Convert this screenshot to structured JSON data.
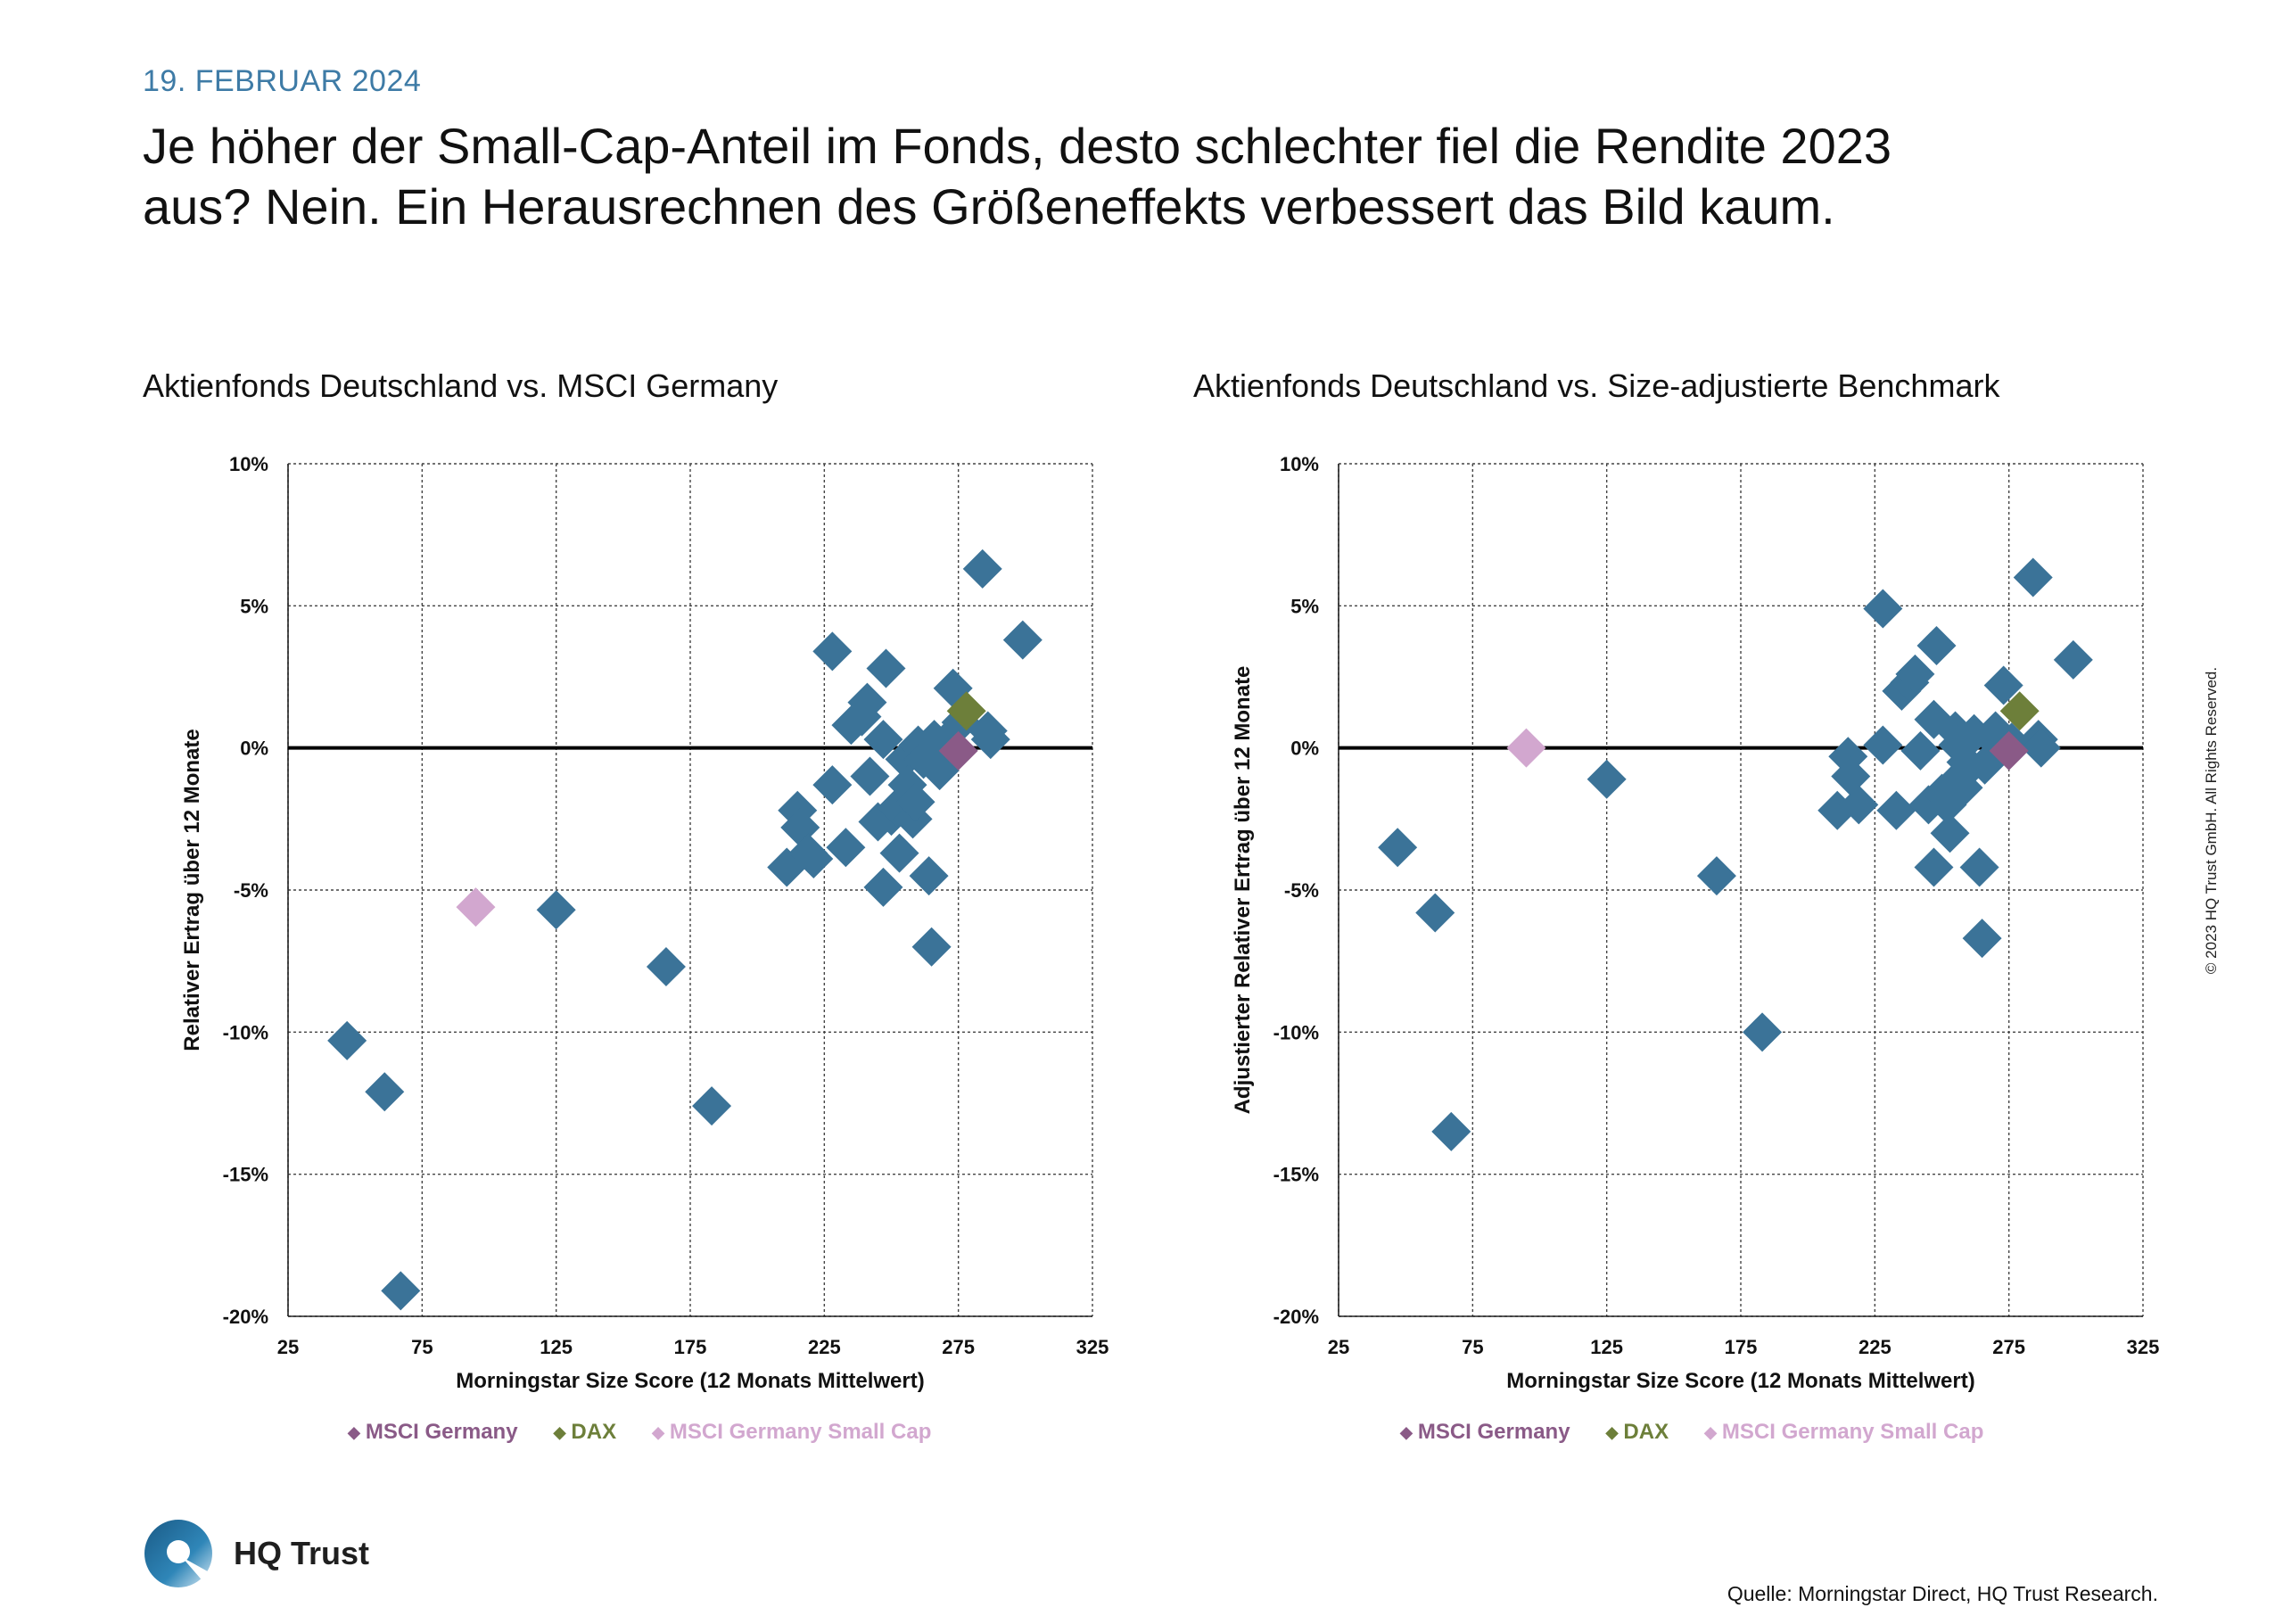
{
  "header": {
    "date": "19. FEBRUAR 2024",
    "headline_line1": "Je höher der Small-Cap-Anteil im Fonds, desto schlechter fiel die Rendite 2023",
    "headline_line2": "aus? Nein. Ein Herausrechnen des Größeneffekts verbessert das Bild kaum."
  },
  "footer": {
    "logo_text": "HQ Trust",
    "source": "Quelle: Morningstar Direct, HQ Trust Research.",
    "copyright": "© 2023 HQ Trust GmbH. All Rights Reserved."
  },
  "colors": {
    "funds": "#3b7398",
    "msci_germany": "#8a5a87",
    "dax": "#6d7f3a",
    "small_cap": "#d2a7cf",
    "grid": "#444444"
  },
  "chart_data": [
    {
      "type": "scatter",
      "title": "Aktienfonds Deutschland vs. MSCI Germany",
      "xlabel": "Morningstar Size Score (12 Monats Mittelwert)",
      "ylabel": "Relativer Ertrag über 12 Monate",
      "xlim": [
        25,
        325
      ],
      "ylim": [
        -20,
        10
      ],
      "xticks": [
        "25",
        "75",
        "125",
        "175",
        "225",
        "275",
        "325"
      ],
      "yticks": [
        "10%",
        "5%",
        "0%",
        "-5%",
        "-10%",
        "-15%",
        "-20%"
      ],
      "grid": true,
      "legend_position": "bottom",
      "legend": [
        "MSCI Germany",
        "DAX",
        "MSCI Germany Small Cap"
      ],
      "series": [
        {
          "name": "",
          "points": [
            [
              47,
              -10.3
            ],
            [
              61,
              -12.1
            ],
            [
              67,
              -19.1
            ],
            [
              125,
              -5.7
            ],
            [
              166,
              -7.7
            ],
            [
              183,
              -12.6
            ],
            [
              211,
              -4.2
            ],
            [
              215,
              -2.2
            ],
            [
              216,
              -2.8
            ],
            [
              219,
              -3.7
            ],
            [
              221,
              -3.9
            ],
            [
              228,
              -1.3
            ],
            [
              228,
              3.4
            ],
            [
              233,
              -3.5
            ],
            [
              235,
              0.8
            ],
            [
              239,
              1.1
            ],
            [
              241,
              1.6
            ],
            [
              242,
              -1.0
            ],
            [
              245,
              -2.6
            ],
            [
              247,
              -4.9
            ],
            [
              247,
              0.3
            ],
            [
              248,
              2.8
            ],
            [
              250,
              -2.4
            ],
            [
              252,
              -2.1
            ],
            [
              253,
              -3.7
            ],
            [
              255,
              -0.4
            ],
            [
              256,
              -1.3
            ],
            [
              258,
              -2.5
            ],
            [
              259,
              -1.9
            ],
            [
              260,
              0.1
            ],
            [
              262,
              -0.4
            ],
            [
              264,
              -4.5
            ],
            [
              265,
              -7.0
            ],
            [
              266,
              0.3
            ],
            [
              268,
              -0.8
            ],
            [
              270,
              0.2
            ],
            [
              273,
              2.1
            ],
            [
              276,
              0.9
            ],
            [
              284,
              6.3
            ],
            [
              286,
              0.6
            ],
            [
              287,
              0.3
            ],
            [
              299,
              3.8
            ]
          ]
        },
        {
          "name": "MSCI Germany",
          "points": [
            [
              275,
              -0.1
            ]
          ]
        },
        {
          "name": "DAX",
          "points": [
            [
              278,
              1.3
            ]
          ]
        },
        {
          "name": "MSCI Germany Small Cap",
          "points": [
            [
              95,
              -5.6
            ]
          ]
        }
      ]
    },
    {
      "type": "scatter",
      "title": "Aktienfonds Deutschland vs. Size-adjustierte Benchmark",
      "xlabel": "Morningstar Size Score (12 Monats Mittelwert)",
      "ylabel": "Adjustierter Relativer Ertrag über 12 Monate",
      "xlim": [
        25,
        325
      ],
      "ylim": [
        -20,
        10
      ],
      "xticks": [
        "25",
        "75",
        "125",
        "175",
        "225",
        "275",
        "325"
      ],
      "yticks": [
        "10%",
        "5%",
        "0%",
        "-5%",
        "-10%",
        "-15%",
        "-20%"
      ],
      "grid": true,
      "legend_position": "bottom",
      "legend": [
        "MSCI Germany",
        "DAX",
        "MSCI Germany Small Cap"
      ],
      "series": [
        {
          "name": "",
          "points": [
            [
              47,
              -3.5
            ],
            [
              61,
              -5.8
            ],
            [
              67,
              -13.5
            ],
            [
              125,
              -1.1
            ],
            [
              166,
              -4.5
            ],
            [
              183,
              -10.0
            ],
            [
              211,
              -2.2
            ],
            [
              215,
              -0.3
            ],
            [
              216,
              -1.0
            ],
            [
              219,
              -2.0
            ],
            [
              228,
              4.9
            ],
            [
              228,
              0.1
            ],
            [
              233,
              -2.2
            ],
            [
              235,
              2.0
            ],
            [
              238,
              2.3
            ],
            [
              240,
              2.6
            ],
            [
              242,
              -0.1
            ],
            [
              245,
              -2.0
            ],
            [
              247,
              -4.2
            ],
            [
              247,
              1.0
            ],
            [
              248,
              3.6
            ],
            [
              250,
              -1.6
            ],
            [
              252,
              -2.0
            ],
            [
              253,
              -3.0
            ],
            [
              255,
              0.6
            ],
            [
              256,
              0.1
            ],
            [
              257,
              -1.0
            ],
            [
              258,
              -1.4
            ],
            [
              259,
              -0.5
            ],
            [
              260,
              0.3
            ],
            [
              262,
              0.5
            ],
            [
              264,
              -4.2
            ],
            [
              265,
              -6.7
            ],
            [
              266,
              -0.6
            ],
            [
              268,
              0.4
            ],
            [
              270,
              0.6
            ],
            [
              273,
              2.2
            ],
            [
              276,
              0.2
            ],
            [
              284,
              6.0
            ],
            [
              286,
              0.3
            ],
            [
              287,
              0.0
            ],
            [
              299,
              3.1
            ]
          ]
        },
        {
          "name": "MSCI Germany",
          "points": [
            [
              275,
              -0.1
            ]
          ]
        },
        {
          "name": "DAX",
          "points": [
            [
              279,
              1.3
            ]
          ]
        },
        {
          "name": "MSCI Germany Small Cap",
          "points": [
            [
              95,
              0.0
            ]
          ]
        }
      ]
    }
  ]
}
